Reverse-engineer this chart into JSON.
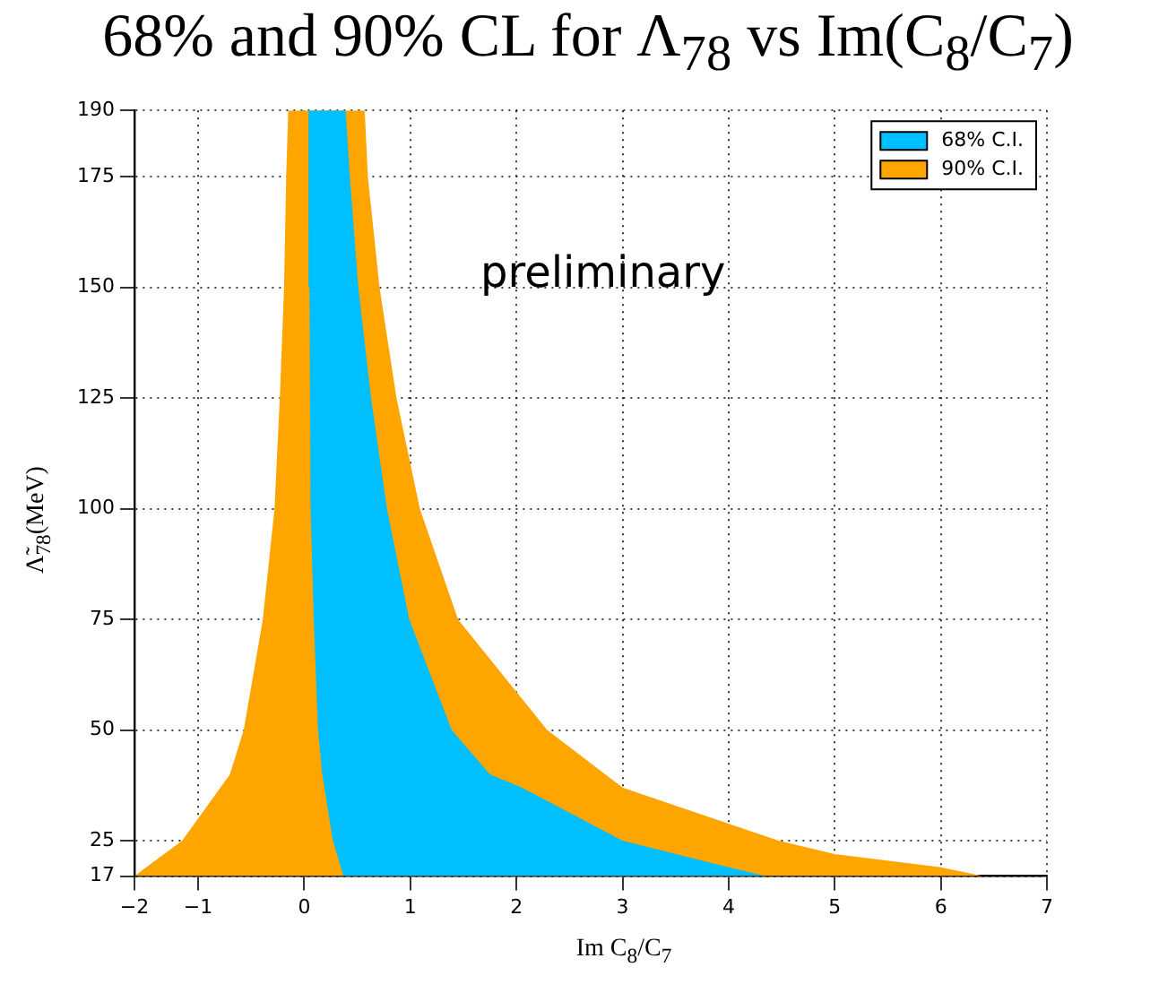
{
  "chart_data": {
    "type": "area",
    "title": "68% and 90% CL for Λ$_{78}$ vs Im(C$_{8}$/C$_{7}$)",
    "xlabel": "Im C$_{8}$/C$_{7}$",
    "ylabel": "Λ̃$_{78}$(MeV)",
    "annotations": [
      "preliminary"
    ],
    "xlim": [
      -1.6,
      7
    ],
    "xticks": [
      {
        "value": -1.6,
        "label": "−2"
      },
      {
        "value": -1,
        "label": "−1"
      },
      0,
      1,
      2,
      3,
      4,
      5,
      6,
      7
    ],
    "ylim": [
      17,
      190
    ],
    "yticks": [
      17,
      25,
      50,
      75,
      100,
      125,
      150,
      175,
      190
    ],
    "grid": true,
    "legend": "top right",
    "marker": "none",
    "series": [
      {
        "name": "90% C.I.",
        "color": "#ffa500",
        "x": [
          -1.6,
          -1.15,
          -0.7,
          -0.57,
          -0.39,
          -0.28,
          -0.23,
          -0.19,
          -0.17,
          -0.15,
          0.57,
          0.6,
          0.71,
          0.87,
          1.09,
          1.45,
          2.29,
          3.0,
          4.47,
          5.0,
          6.0,
          6.4
        ],
        "values": [
          17,
          25,
          40,
          50,
          75,
          100,
          125,
          150,
          175,
          190,
          190,
          175,
          150,
          125,
          100,
          75,
          50,
          37,
          25,
          22,
          19,
          17
        ]
      },
      {
        "name": "68% C.I.",
        "color": "#00bfff",
        "x": [
          0.37,
          0.27,
          0.17,
          0.13,
          0.09,
          0.06,
          0.05,
          0.04,
          0.39,
          0.43,
          0.51,
          0.63,
          0.78,
          0.99,
          1.39,
          1.75,
          2.05,
          3.0,
          4.0,
          4.35
        ],
        "values": [
          17,
          25,
          40,
          50,
          75,
          100,
          150,
          190,
          190,
          175,
          150,
          125,
          100,
          75,
          50,
          40,
          37,
          25,
          19,
          17
        ]
      }
    ]
  }
}
